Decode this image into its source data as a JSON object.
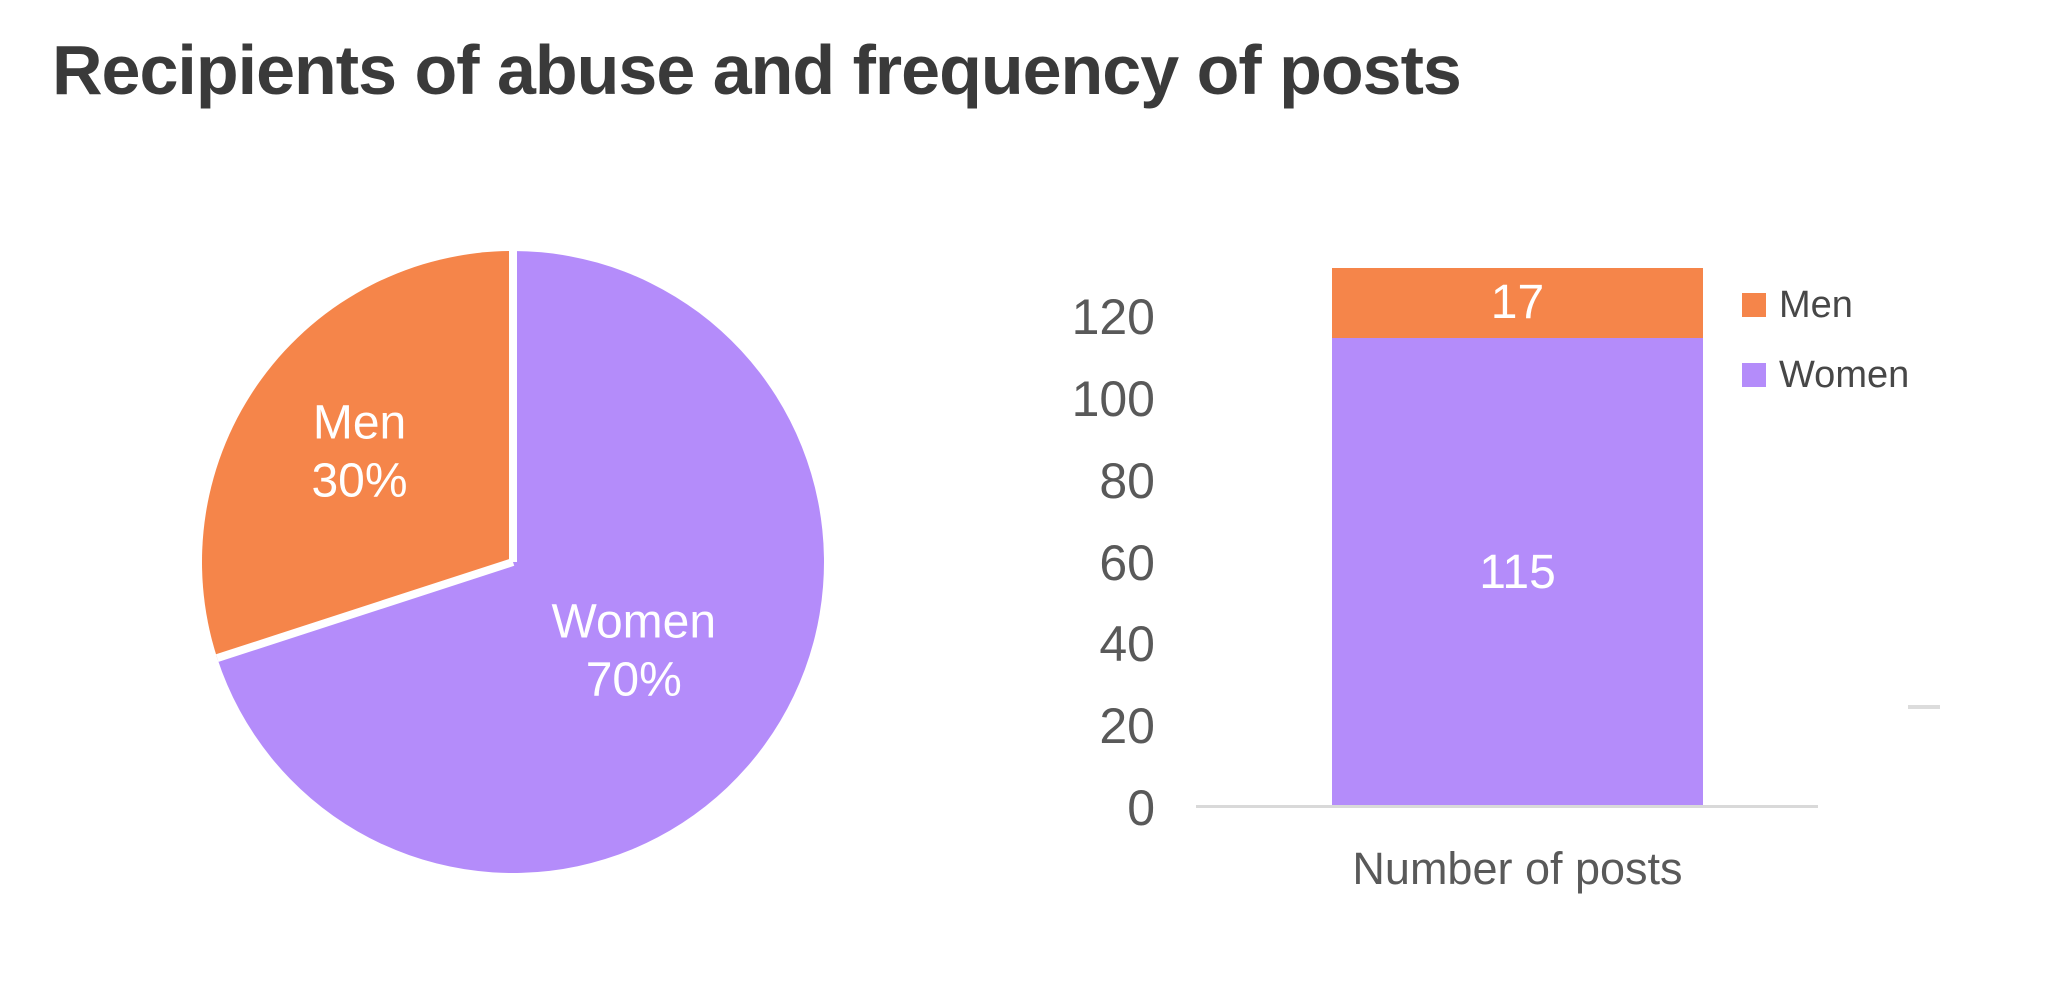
{
  "title": "Recipients of abuse and frequency of posts",
  "colors": {
    "men": "#F5854A",
    "women": "#B48CFA",
    "title_text": "#3A3A3A",
    "axis_text": "#595959",
    "legend_text": "#474747",
    "pie_label_text": "#FFFFFF",
    "bar_label_text": "#FFFFFF",
    "axis_line": "#D9D9D9",
    "slice_gap": "#FFFFFF"
  },
  "chart_data": [
    {
      "type": "pie",
      "name": "recipients-of-abuse-share",
      "slices": [
        {
          "label": "Men",
          "value": 30,
          "value_label": "30%",
          "color_key": "men"
        },
        {
          "label": "Women",
          "value": 70,
          "value_label": "70%",
          "color_key": "women"
        }
      ],
      "start_angle_deg": 0,
      "direction": "clockwise",
      "first_slice_at_top": "Women",
      "slice_gap": true,
      "labels_inside": true
    },
    {
      "type": "bar",
      "subtype": "stacked-column",
      "name": "frequency-of-posts",
      "categories": [
        "Number of posts"
      ],
      "series": [
        {
          "name": "Women",
          "values": [
            115
          ],
          "color_key": "women"
        },
        {
          "name": "Men",
          "values": [
            17
          ],
          "color_key": "men"
        }
      ],
      "ylim": [
        0,
        120
      ],
      "yticks": [
        0,
        20,
        40,
        60,
        80,
        100,
        120
      ],
      "grid": false,
      "data_labels": true,
      "legend": [
        "Men",
        "Women"
      ],
      "legend_position": "right",
      "xlabel": "Number of posts"
    }
  ]
}
